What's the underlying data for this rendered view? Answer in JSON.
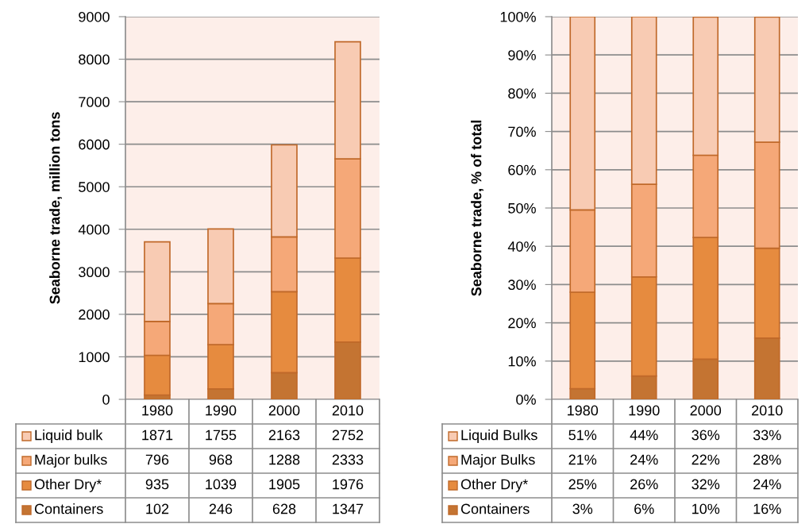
{
  "chart_data": [
    {
      "type": "bar",
      "stacked": true,
      "ylabel": "Seaborne trade, million tons",
      "categories": [
        "1980",
        "1990",
        "2000",
        "2010"
      ],
      "ylim": [
        0,
        9000
      ],
      "yticks": [
        0,
        1000,
        2000,
        3000,
        4000,
        5000,
        6000,
        7000,
        8000,
        9000
      ],
      "grid": "y",
      "data_labels": true,
      "legend": "bottom",
      "series": [
        {
          "name": "Containers",
          "color": "#c47432",
          "values": [
            102,
            246,
            628,
            1347
          ]
        },
        {
          "name": "Other Dry*",
          "color": "#e68b3f",
          "values": [
            935,
            1039,
            1905,
            1976
          ]
        },
        {
          "name": "Major bulks",
          "color": "#f5a878",
          "values": [
            796,
            968,
            1288,
            2333
          ]
        },
        {
          "name": "Liquid bulk",
          "color": "#f8cbb3",
          "values": [
            1871,
            1755,
            2163,
            2752
          ]
        }
      ]
    },
    {
      "type": "bar",
      "stacked": true,
      "ylabel": "Seaborne trade, % of total",
      "categories": [
        "1980",
        "1990",
        "2000",
        "2010"
      ],
      "ylim": [
        0,
        100
      ],
      "yticks": [
        {
          "value": 0,
          "label": "0%"
        },
        {
          "value": 10,
          "label": "10%"
        },
        {
          "value": 20,
          "label": "20%"
        },
        {
          "value": 30,
          "label": "30%"
        },
        {
          "value": 40,
          "label": "40%"
        },
        {
          "value": 50,
          "label": "50%"
        },
        {
          "value": 60,
          "label": "60%"
        },
        {
          "value": 70,
          "label": "70%"
        },
        {
          "value": 80,
          "label": "80%"
        },
        {
          "value": 90,
          "label": "90%"
        },
        {
          "value": 100,
          "label": "100%"
        }
      ],
      "grid": "y",
      "legend": "bottom",
      "series": [
        {
          "name": "Containers",
          "color": "#c47432",
          "values": [
            2.8,
            6.1,
            10.5,
            16.0
          ],
          "value_labels": [
            "3%",
            "6%",
            "10%",
            "16%"
          ]
        },
        {
          "name": "Other Dry*",
          "color": "#e68b3f",
          "values": [
            25.2,
            25.9,
            31.8,
            23.5
          ],
          "value_labels": [
            "25%",
            "26%",
            "32%",
            "24%"
          ]
        },
        {
          "name": "Major Bulks",
          "color": "#f5a878",
          "values": [
            21.5,
            24.2,
            21.5,
            27.7
          ],
          "value_labels": [
            "21%",
            "24%",
            "22%",
            "28%"
          ]
        },
        {
          "name": "Liquid Bulks",
          "color": "#f8cbb3",
          "values": [
            50.5,
            43.8,
            36.1,
            32.7
          ],
          "value_labels": [
            "51%",
            "44%",
            "36%",
            "33%"
          ]
        }
      ]
    }
  ]
}
